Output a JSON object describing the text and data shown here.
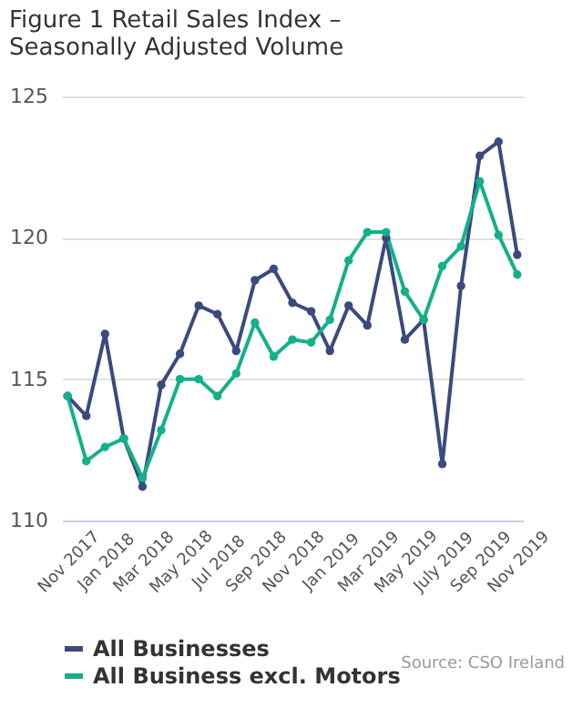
{
  "chart_data": {
    "type": "line",
    "title": "Figure 1 Retail Sales Index – Seasonally Adjusted Volume",
    "categories": [
      "Nov 2017",
      null,
      "Jan 2018",
      null,
      "Mar 2018",
      null,
      "May 2018",
      null,
      "Jul 2018",
      null,
      "Sep 2018",
      null,
      "Nov 2018",
      null,
      "Jan 2019",
      null,
      "Mar 2019",
      null,
      "May 2019",
      null,
      "July 2019",
      null,
      "Sep 2019",
      null,
      "Nov 2019"
    ],
    "series": [
      {
        "name": "All Businesses",
        "color": "#3b4a7e",
        "values": [
          114.4,
          113.7,
          116.6,
          112.9,
          111.2,
          114.8,
          115.9,
          117.6,
          117.3,
          116.0,
          118.5,
          118.9,
          117.7,
          117.4,
          116.0,
          117.6,
          116.9,
          120.0,
          116.4,
          117.1,
          112.0,
          118.3,
          122.9,
          123.4,
          119.4
        ]
      },
      {
        "name": "All Business excl. Motors",
        "color": "#14b08a",
        "values": [
          114.4,
          112.1,
          112.6,
          112.9,
          111.5,
          113.2,
          115.0,
          115.0,
          114.4,
          115.2,
          117.0,
          115.8,
          116.4,
          116.3,
          117.1,
          119.2,
          120.2,
          120.2,
          118.1,
          117.1,
          119.0,
          119.7,
          122.0,
          120.1,
          118.7
        ]
      }
    ],
    "ylim": [
      110,
      125
    ],
    "yticks": [
      110,
      115,
      120,
      125
    ],
    "grid": "y",
    "legend": "bottom",
    "marker": "circle",
    "line_style": "solid",
    "annotations": [
      "Source: CSO Ireland"
    ]
  }
}
